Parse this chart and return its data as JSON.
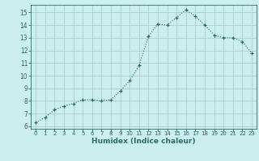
{
  "x": [
    0,
    1,
    2,
    3,
    4,
    5,
    6,
    7,
    8,
    9,
    10,
    11,
    12,
    13,
    14,
    15,
    16,
    17,
    18,
    19,
    20,
    21,
    22,
    23
  ],
  "y": [
    6.3,
    6.7,
    7.3,
    7.6,
    7.8,
    8.1,
    8.1,
    8.0,
    8.1,
    8.8,
    9.6,
    10.8,
    13.1,
    14.1,
    14.0,
    14.6,
    15.2,
    14.7,
    14.0,
    13.2,
    13.0,
    13.0,
    12.7,
    11.8
  ],
  "xlabel": "Humidex (Indice chaleur)",
  "ylim": [
    5.8,
    15.6
  ],
  "xlim": [
    -0.5,
    23.5
  ],
  "yticks": [
    6,
    7,
    8,
    9,
    10,
    11,
    12,
    13,
    14,
    15
  ],
  "xticks": [
    0,
    1,
    2,
    3,
    4,
    5,
    6,
    7,
    8,
    9,
    10,
    11,
    12,
    13,
    14,
    15,
    16,
    17,
    18,
    19,
    20,
    21,
    22,
    23
  ],
  "line_color": "#2a6b6b",
  "bg_color": "#cceeed",
  "grid_color": "#b0cccc",
  "spine_color": "#2a6b6b"
}
